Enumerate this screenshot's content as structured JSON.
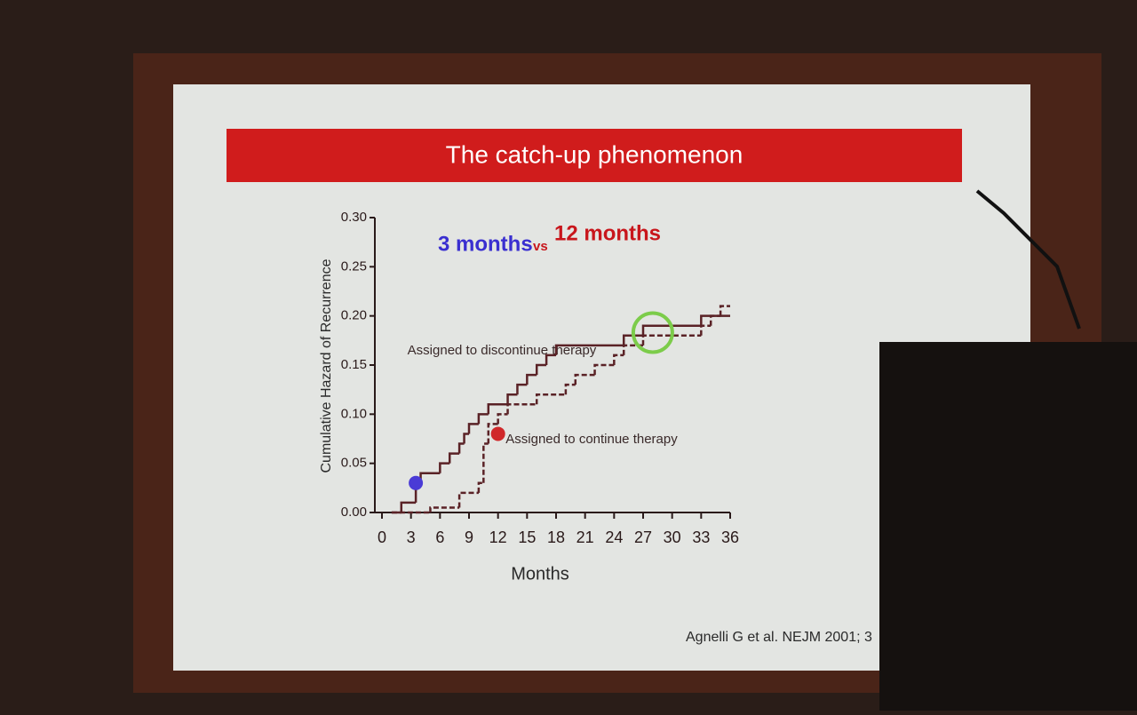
{
  "slide": {
    "title": "The catch-up phenomenon",
    "citation": "Agnelli G et al. NEJM 2001; 3"
  },
  "chart_data": {
    "type": "line",
    "step": true,
    "headline": [
      "3 months",
      "vs",
      "12 months"
    ],
    "annotations": [
      "Assigned to discontinue therapy",
      "Assigned to continue therapy"
    ],
    "xlabel": "Months",
    "ylabel": "Cumulative Hazard of Recurrence",
    "xlim": [
      0,
      36
    ],
    "xticks": [
      0,
      3,
      6,
      9,
      12,
      15,
      18,
      21,
      24,
      27,
      30,
      33,
      36
    ],
    "ylim": [
      0,
      0.3
    ],
    "yticks": [
      {
        "value": 0,
        "label": "0.00"
      },
      0.05,
      {
        "value": 0.1,
        "label": "0.10"
      },
      0.15,
      {
        "value": 0.2,
        "label": "0.20"
      },
      0.25,
      {
        "value": 0.3,
        "label": "0.30"
      }
    ],
    "series": [
      {
        "name": "Assigned to discontinue therapy",
        "color": "#5a2226",
        "dash": false,
        "x": [
          1,
          2,
          3.5,
          4,
          6,
          7,
          8,
          8.5,
          9,
          10,
          11,
          13,
          14,
          15,
          16,
          17,
          18,
          25,
          27,
          33
        ],
        "values": [
          0,
          0.01,
          0.03,
          0.04,
          0.05,
          0.06,
          0.07,
          0.08,
          0.09,
          0.1,
          0.11,
          0.12,
          0.13,
          0.14,
          0.15,
          0.16,
          0.17,
          0.18,
          0.19,
          0.2
        ]
      },
      {
        "name": "Assigned to continue therapy",
        "color": "#5a2226",
        "dash": true,
        "x": [
          1,
          5,
          8,
          10,
          10.5,
          11,
          12,
          13,
          16,
          19,
          20,
          22,
          24,
          25,
          27,
          33,
          34,
          35
        ],
        "values": [
          0,
          0.005,
          0.02,
          0.03,
          0.07,
          0.09,
          0.1,
          0.11,
          0.12,
          0.13,
          0.14,
          0.15,
          0.16,
          0.17,
          0.18,
          0.19,
          0.2,
          0.21
        ]
      }
    ],
    "markers": [
      {
        "x": 3.5,
        "y": 0.03,
        "color": "#4a3bd6"
      },
      {
        "x": 12,
        "y": 0.08,
        "color": "#d0282a"
      }
    ],
    "highlight": {
      "x": 28,
      "y": 0.183,
      "color": "#7ccc4a"
    }
  }
}
